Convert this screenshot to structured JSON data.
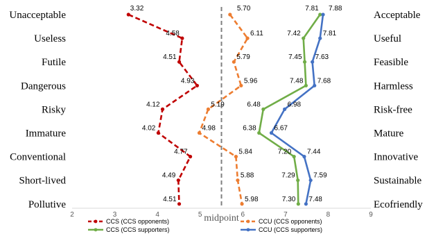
{
  "chart_data": {
    "type": "line",
    "x_ticks": [
      2,
      3,
      4,
      5,
      6,
      7,
      8,
      9
    ],
    "xlim": [
      2,
      9
    ],
    "midpoint_value": 5.5,
    "midpoint_label": "midpoint",
    "left_labels": [
      "Unacceptable",
      "Useless",
      "Futile",
      "Dangerous",
      "Risky",
      "Immature",
      "Conventional",
      "Short-lived",
      "Pollutive"
    ],
    "right_labels": [
      "Acceptable",
      "Useful",
      "Feasible",
      "Harmless",
      "Risk-free",
      "Mature",
      "Innovative",
      "Sustainable",
      "Ecofriendly"
    ],
    "series": [
      {
        "name": "CCS (CCS opponents)",
        "color": "#c00000",
        "dash": "dashed",
        "values": [
          3.32,
          4.58,
          4.51,
          4.93,
          4.12,
          4.02,
          4.77,
          4.49,
          4.51
        ]
      },
      {
        "name": "CCU (CCS opponents)",
        "color": "#ed7d31",
        "dash": "dashed",
        "values": [
          5.7,
          6.11,
          5.79,
          5.96,
          5.19,
          4.98,
          5.84,
          5.88,
          5.98
        ]
      },
      {
        "name": "CCS (CCS supporters)",
        "color": "#70ad47",
        "dash": "solid",
        "values": [
          7.81,
          7.42,
          7.45,
          7.48,
          6.48,
          6.38,
          7.2,
          7.29,
          7.3
        ]
      },
      {
        "name": "CCU (CCS supporters)",
        "color": "#4472c4",
        "dash": "solid",
        "values": [
          7.88,
          7.81,
          7.63,
          7.68,
          6.98,
          6.67,
          7.44,
          7.59,
          7.48
        ]
      }
    ]
  }
}
